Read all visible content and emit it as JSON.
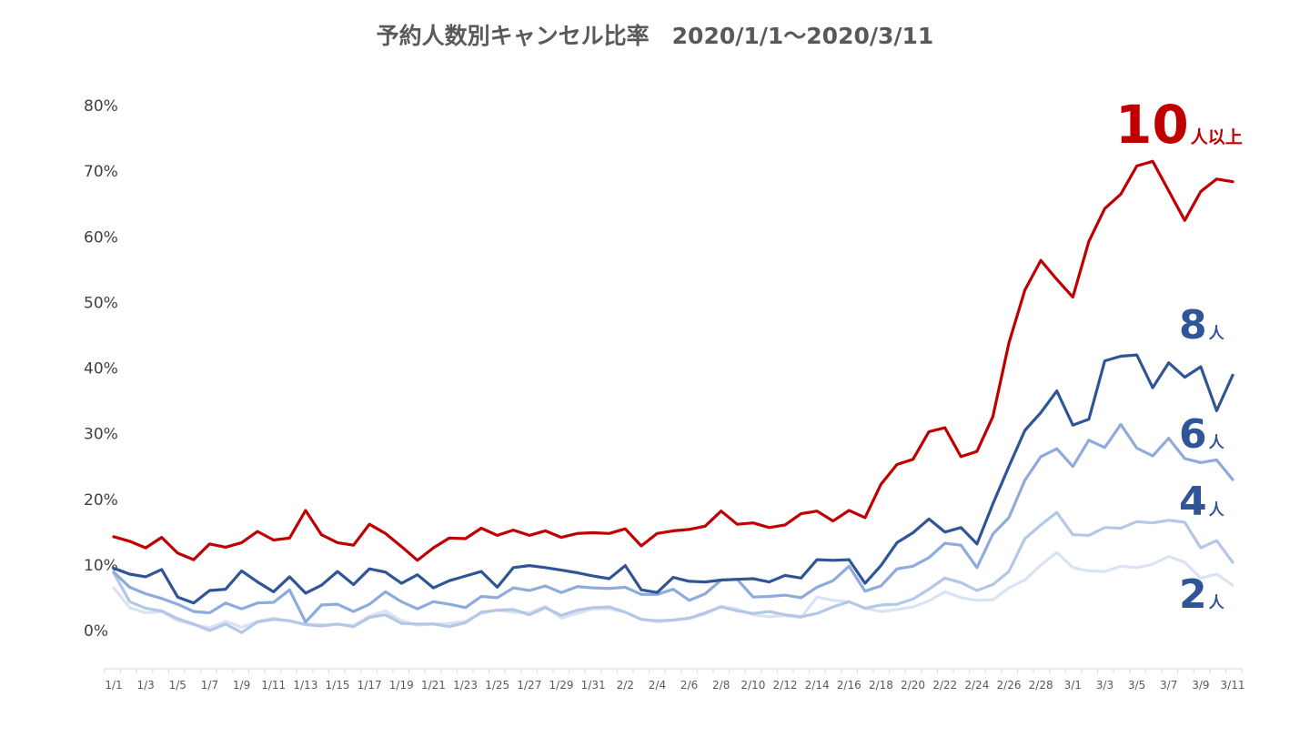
{
  "chart_data": {
    "type": "line",
    "title": "予約人数別キャンセル比率　2020/1/1～2020/3/11",
    "ylim": [
      0,
      80
    ],
    "y_ticks": [
      0,
      10,
      20,
      30,
      40,
      50,
      60,
      70,
      80
    ],
    "y_tick_labels": [
      "0%",
      "10%",
      "20%",
      "30%",
      "40%",
      "50%",
      "60%",
      "70%",
      "80%"
    ],
    "x": [
      "1/1",
      "1/2",
      "1/3",
      "1/4",
      "1/5",
      "1/6",
      "1/7",
      "1/8",
      "1/9",
      "1/10",
      "1/11",
      "1/12",
      "1/13",
      "1/14",
      "1/15",
      "1/16",
      "1/17",
      "1/18",
      "1/19",
      "1/20",
      "1/21",
      "1/22",
      "1/23",
      "1/24",
      "1/25",
      "1/26",
      "1/27",
      "1/28",
      "1/29",
      "1/30",
      "1/31",
      "2/1",
      "2/2",
      "2/3",
      "2/4",
      "2/5",
      "2/6",
      "2/7",
      "2/8",
      "2/9",
      "2/10",
      "2/11",
      "2/12",
      "2/13",
      "2/14",
      "2/15",
      "2/16",
      "2/17",
      "2/18",
      "2/19",
      "2/20",
      "2/21",
      "2/22",
      "2/23",
      "2/24",
      "2/25",
      "2/26",
      "2/27",
      "2/28",
      "2/29",
      "3/1",
      "3/2",
      "3/3",
      "3/4",
      "3/5",
      "3/6",
      "3/7",
      "3/8",
      "3/9",
      "3/10",
      "3/11"
    ],
    "x_tick_labels": [
      "1/1",
      "1/3",
      "1/5",
      "1/7",
      "1/9",
      "1/11",
      "1/13",
      "1/15",
      "1/17",
      "1/19",
      "1/21",
      "1/23",
      "1/25",
      "1/27",
      "1/29",
      "1/31",
      "2/2",
      "2/4",
      "2/6",
      "2/8",
      "2/10",
      "2/12",
      "2/14",
      "2/16",
      "2/18",
      "2/20",
      "2/22",
      "2/24",
      "2/26",
      "2/28",
      "3/1",
      "3/3",
      "3/5",
      "3/7",
      "3/9",
      "3/11"
    ],
    "series": [
      {
        "name": "2人",
        "color": "#dae3f3",
        "values": [
          6.5,
          3.5,
          2.7,
          2.9,
          1.5,
          0.9,
          0.4,
          1.4,
          0.5,
          1.4,
          1.9,
          1.4,
          1.0,
          0.9,
          0.9,
          0.8,
          2.2,
          3.0,
          1.5,
          0.8,
          1.0,
          1.1,
          1.4,
          2.6,
          3.1,
          2.8,
          2.7,
          3.7,
          1.9,
          2.6,
          3.3,
          3.3,
          2.8,
          1.7,
          1.3,
          1.6,
          1.8,
          2.5,
          3.7,
          3.3,
          2.4,
          2.1,
          2.3,
          2.0,
          5.1,
          4.6,
          4.4,
          3.4,
          2.9,
          3.2,
          3.6,
          4.5,
          5.9,
          5.0,
          4.6,
          4.7,
          6.5,
          7.7,
          10.0,
          11.9,
          9.6,
          9.1,
          9.0,
          9.8,
          9.6,
          10.1,
          11.3,
          10.4,
          8.0,
          8.6,
          6.9
        ]
      },
      {
        "name": "4人",
        "color": "#b4c7e7",
        "values": [
          8.8,
          4.4,
          3.4,
          3.0,
          1.8,
          1.0,
          0.0,
          1.0,
          -0.3,
          1.3,
          1.7,
          1.5,
          0.9,
          0.7,
          1.0,
          0.6,
          2.0,
          2.4,
          1.1,
          1.0,
          1.0,
          0.6,
          1.2,
          2.8,
          3.1,
          3.2,
          2.4,
          3.5,
          2.3,
          3.1,
          3.5,
          3.6,
          2.8,
          1.7,
          1.5,
          1.6,
          1.9,
          2.7,
          3.6,
          3.0,
          2.6,
          2.9,
          2.4,
          2.1,
          2.6,
          3.6,
          4.4,
          3.4,
          3.9,
          4.0,
          4.8,
          6.3,
          8.0,
          7.3,
          6.1,
          7.0,
          9.0,
          14.0,
          16.1,
          18.0,
          14.6,
          14.5,
          15.7,
          15.6,
          16.6,
          16.4,
          16.8,
          16.5,
          12.6,
          13.7,
          10.4
        ]
      },
      {
        "name": "6人",
        "color": "#8faadc",
        "values": [
          8.9,
          6.6,
          5.6,
          4.9,
          4.0,
          2.9,
          2.7,
          4.2,
          3.3,
          4.2,
          4.3,
          6.2,
          1.3,
          3.9,
          4.0,
          2.9,
          4.0,
          5.9,
          4.4,
          3.3,
          4.4,
          4.0,
          3.5,
          5.2,
          5.0,
          6.5,
          6.1,
          6.8,
          5.8,
          6.7,
          6.5,
          6.4,
          6.6,
          5.5,
          5.5,
          6.3,
          4.6,
          5.6,
          7.7,
          7.8,
          5.1,
          5.2,
          5.4,
          5.0,
          6.6,
          7.6,
          9.8,
          6.0,
          6.8,
          9.4,
          9.8,
          11.1,
          13.3,
          13.0,
          9.6,
          14.7,
          17.2,
          22.9,
          26.5,
          27.7,
          25.0,
          29.0,
          27.9,
          31.4,
          27.8,
          26.6,
          29.3,
          26.2,
          25.6,
          26.0,
          23.0
        ]
      },
      {
        "name": "8人",
        "color": "#2f5597",
        "values": [
          9.5,
          8.6,
          8.2,
          9.3,
          5.1,
          4.2,
          6.1,
          6.3,
          9.1,
          7.4,
          5.9,
          8.2,
          5.7,
          6.9,
          9.0,
          7.0,
          9.4,
          8.9,
          7.2,
          8.5,
          6.5,
          7.6,
          8.3,
          9.0,
          6.6,
          9.6,
          9.9,
          9.6,
          9.2,
          8.8,
          8.3,
          7.9,
          9.9,
          6.2,
          5.8,
          8.1,
          7.5,
          7.4,
          7.7,
          7.8,
          7.9,
          7.4,
          8.4,
          8.0,
          10.8,
          10.7,
          10.8,
          7.2,
          9.9,
          13.4,
          14.9,
          17.0,
          15.0,
          15.7,
          13.2,
          19.3,
          25.0,
          30.5,
          33.2,
          36.5,
          31.3,
          32.2,
          41.1,
          41.8,
          42.0,
          37.0,
          40.8,
          38.6,
          40.2,
          33.5,
          38.9
        ]
      },
      {
        "name": "10人以上",
        "color": "#c00000",
        "values": [
          14.3,
          13.6,
          12.6,
          14.2,
          11.8,
          10.8,
          13.2,
          12.7,
          13.4,
          15.1,
          13.8,
          14.1,
          18.3,
          14.6,
          13.4,
          13.0,
          16.2,
          14.8,
          12.8,
          10.7,
          12.6,
          14.1,
          14.0,
          15.6,
          14.5,
          15.3,
          14.5,
          15.2,
          14.2,
          14.8,
          14.9,
          14.8,
          15.5,
          12.9,
          14.8,
          15.2,
          15.4,
          15.9,
          18.2,
          16.2,
          16.4,
          15.7,
          16.1,
          17.8,
          18.2,
          16.7,
          18.3,
          17.2,
          22.3,
          25.3,
          26.1,
          30.3,
          30.9,
          26.5,
          27.3,
          32.6,
          43.8,
          51.9,
          56.4,
          53.5,
          50.8,
          59.3,
          64.3,
          66.5,
          70.8,
          71.5,
          67.0,
          62.5,
          66.9,
          68.8,
          68.4
        ]
      }
    ],
    "end_labels": [
      {
        "num": "10",
        "unit": "人以上",
        "color": "#c00000"
      },
      {
        "num": "8",
        "unit": "人",
        "color": "#2f5597"
      },
      {
        "num": "6",
        "unit": "人",
        "color": "#2f5597"
      },
      {
        "num": "4",
        "unit": "人",
        "color": "#2f5597"
      },
      {
        "num": "2",
        "unit": "人",
        "color": "#2f5597"
      }
    ]
  }
}
